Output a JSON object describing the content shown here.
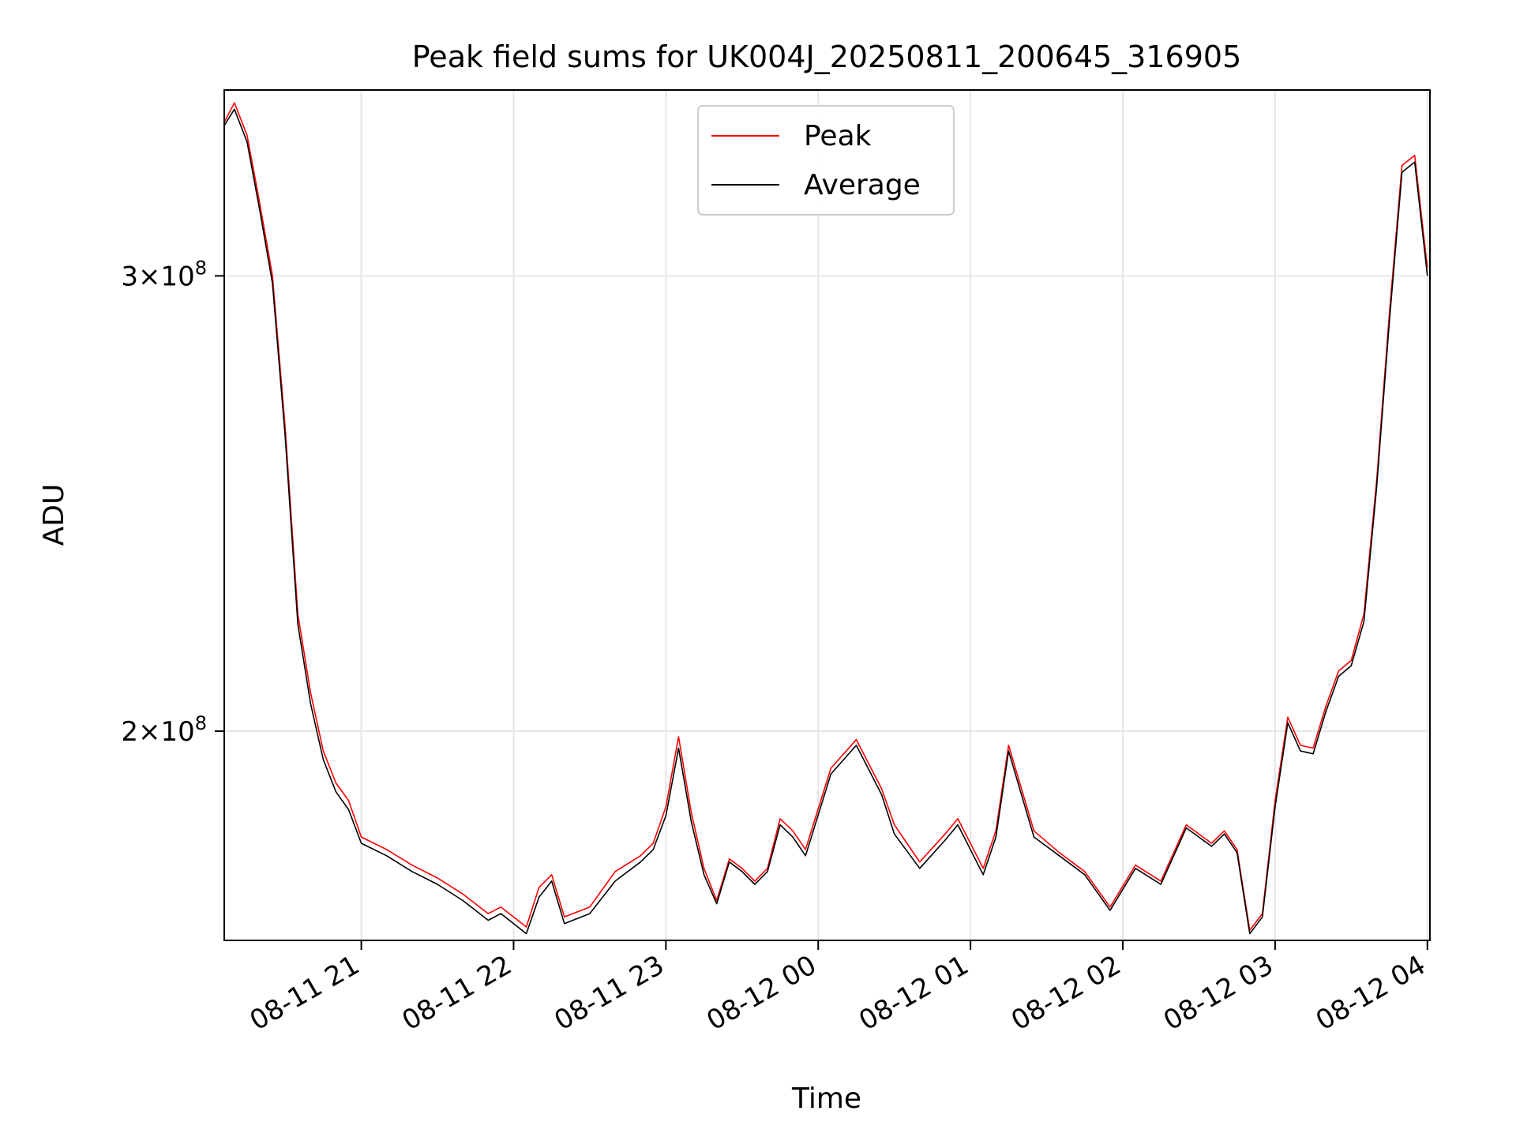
{
  "chart_data": {
    "type": "line",
    "title": "Peak field sums for UK004J_20250811_200645_316905",
    "xlabel": "Time",
    "ylabel": "ADU",
    "yscale": "log",
    "ylim": [
      166000000,
      354000000
    ],
    "xlim": [
      "2025-08-11 20:06",
      "2025-08-12 04:01"
    ],
    "grid": true,
    "legend_position": "top-center",
    "x_ticks": [
      {
        "value": "2025-08-11 21:00",
        "label": "08-11 21"
      },
      {
        "value": "2025-08-11 22:00",
        "label": "08-11 22"
      },
      {
        "value": "2025-08-11 23:00",
        "label": "08-11 23"
      },
      {
        "value": "2025-08-12 00:00",
        "label": "08-12 00"
      },
      {
        "value": "2025-08-12 01:00",
        "label": "08-12 01"
      },
      {
        "value": "2025-08-12 02:00",
        "label": "08-12 02"
      },
      {
        "value": "2025-08-12 03:00",
        "label": "08-12 03"
      },
      {
        "value": "2025-08-12 04:00",
        "label": "08-12 04"
      }
    ],
    "y_ticks": [
      {
        "value": 300000000,
        "base": "3",
        "exp": "8"
      },
      {
        "value": 200000000,
        "base": "2",
        "exp": "8"
      }
    ],
    "x": [
      "2025-08-11 20:06",
      "2025-08-11 20:10",
      "2025-08-11 20:15",
      "2025-08-11 20:20",
      "2025-08-11 20:25",
      "2025-08-11 20:30",
      "2025-08-11 20:35",
      "2025-08-11 20:40",
      "2025-08-11 20:45",
      "2025-08-11 20:50",
      "2025-08-11 20:55",
      "2025-08-11 21:00",
      "2025-08-11 21:10",
      "2025-08-11 21:20",
      "2025-08-11 21:30",
      "2025-08-11 21:40",
      "2025-08-11 21:50",
      "2025-08-11 21:55",
      "2025-08-11 22:05",
      "2025-08-11 22:10",
      "2025-08-11 22:15",
      "2025-08-11 22:20",
      "2025-08-11 22:30",
      "2025-08-11 22:40",
      "2025-08-11 22:50",
      "2025-08-11 22:55",
      "2025-08-11 23:00",
      "2025-08-11 23:05",
      "2025-08-11 23:10",
      "2025-08-11 23:15",
      "2025-08-11 23:20",
      "2025-08-11 23:25",
      "2025-08-11 23:30",
      "2025-08-11 23:35",
      "2025-08-11 23:40",
      "2025-08-11 23:45",
      "2025-08-11 23:50",
      "2025-08-11 23:55",
      "2025-08-12 00:05",
      "2025-08-12 00:15",
      "2025-08-12 00:25",
      "2025-08-12 00:30",
      "2025-08-12 00:40",
      "2025-08-12 00:50",
      "2025-08-12 00:55",
      "2025-08-12 01:05",
      "2025-08-12 01:10",
      "2025-08-12 01:15",
      "2025-08-12 01:25",
      "2025-08-12 01:35",
      "2025-08-12 01:45",
      "2025-08-12 01:55",
      "2025-08-12 02:05",
      "2025-08-12 02:15",
      "2025-08-12 02:25",
      "2025-08-12 02:35",
      "2025-08-12 02:40",
      "2025-08-12 02:45",
      "2025-08-12 02:50",
      "2025-08-12 02:55",
      "2025-08-12 03:00",
      "2025-08-12 03:05",
      "2025-08-12 03:10",
      "2025-08-12 03:15",
      "2025-08-12 03:20",
      "2025-08-12 03:25",
      "2025-08-12 03:30",
      "2025-08-12 03:35",
      "2025-08-12 03:40",
      "2025-08-12 03:45",
      "2025-08-12 03:50",
      "2025-08-12 03:55",
      "2025-08-12 04:00"
    ],
    "series": [
      {
        "name": "Peak",
        "color": "#ff0000",
        "values": [
          344000000,
          350000000,
          340000000,
          320000000,
          300000000,
          262000000,
          222000000,
          207000000,
          196500000,
          191000000,
          188000000,
          182000000,
          180000000,
          177500000,
          175500000,
          173000000,
          170000000,
          171000000,
          168000000,
          174000000,
          176000000,
          169500000,
          171000000,
          176500000,
          179000000,
          181000000,
          187000000,
          199000000,
          186000000,
          177000000,
          172000000,
          178500000,
          177000000,
          175000000,
          177000000,
          185000000,
          183000000,
          180000000,
          193500000,
          198500000,
          190000000,
          184000000,
          178000000,
          182500000,
          185000000,
          177000000,
          183000000,
          197500000,
          183000000,
          179500000,
          176500000,
          171000000,
          177500000,
          175000000,
          184000000,
          181000000,
          183000000,
          180000000,
          167500000,
          170000000,
          188000000,
          202500000,
          197500000,
          197000000,
          204500000,
          211000000,
          213000000,
          222000000,
          250000000,
          290000000,
          331000000,
          334000000,
          302000000
        ]
      },
      {
        "name": "Average",
        "color": "#000000",
        "values": [
          343000000,
          348000000,
          338000000,
          318000000,
          298000000,
          260000000,
          220000000,
          205000000,
          195000000,
          189500000,
          186500000,
          181000000,
          179000000,
          176500000,
          174500000,
          172000000,
          169000000,
          170000000,
          167000000,
          172500000,
          175000000,
          168500000,
          170000000,
          175000000,
          178000000,
          180000000,
          185500000,
          197000000,
          184500000,
          176000000,
          171500000,
          178000000,
          176500000,
          174500000,
          176500000,
          184000000,
          182000000,
          179000000,
          192500000,
          197500000,
          189000000,
          182500000,
          177000000,
          181500000,
          184000000,
          176000000,
          182000000,
          196500000,
          182000000,
          179000000,
          176000000,
          170500000,
          177000000,
          174500000,
          183500000,
          180500000,
          182500000,
          179500000,
          167000000,
          169500000,
          187000000,
          201500000,
          196500000,
          196000000,
          203500000,
          210000000,
          212000000,
          220500000,
          248500000,
          288000000,
          329000000,
          332000000,
          300000000
        ]
      }
    ]
  }
}
